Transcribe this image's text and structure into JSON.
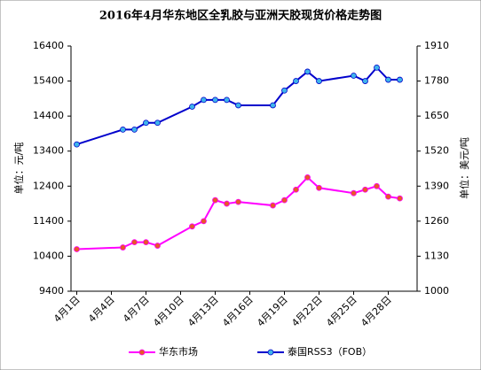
{
  "chart_data": {
    "type": "line",
    "title": "2016年4月华东地区全乳胶与亚洲天胶现货价格走势图",
    "y_label": "单位：元/吨",
    "y2_label": "单位：美元/吨",
    "xlim": [
      0.5,
      30.5
    ],
    "xticks": [
      {
        "value": 1,
        "label": "4月1日"
      },
      {
        "value": 4,
        "label": "4月4日"
      },
      {
        "value": 7,
        "label": "4月7日"
      },
      {
        "value": 10,
        "label": "4月10日"
      },
      {
        "value": 13,
        "label": "4月13日"
      },
      {
        "value": 16,
        "label": "4月16日"
      },
      {
        "value": 19,
        "label": "4月19日"
      },
      {
        "value": 22,
        "label": "4月22日"
      },
      {
        "value": 25,
        "label": "4月25日"
      },
      {
        "value": 28,
        "label": "4月28日"
      }
    ],
    "ylim": [
      9400,
      16400
    ],
    "yticks": [
      9400,
      10400,
      11400,
      12400,
      13400,
      14400,
      15400,
      16400
    ],
    "y2lim": [
      1000,
      1910
    ],
    "y2ticks": [
      1000,
      1130,
      1260,
      1390,
      1520,
      1650,
      1780,
      1910
    ],
    "legend": "bottom",
    "grid": false,
    "series": [
      {
        "name": "华东市场",
        "color": "#ff00ff",
        "marker_color": "#e8562a",
        "axis": "y",
        "x": [
          1,
          5,
          6,
          7,
          8,
          11,
          12,
          13,
          14,
          15,
          18,
          19,
          20,
          21,
          22,
          25,
          26,
          27,
          28,
          29
        ],
        "values": [
          10600,
          10650,
          10800,
          10800,
          10700,
          11250,
          11400,
          12000,
          11900,
          11950,
          11850,
          12000,
          12300,
          12650,
          12350,
          12200,
          12300,
          12400,
          12100,
          12050
        ]
      },
      {
        "name": "泰国RSS3（FOB）",
        "color": "#0000cc",
        "marker_color": "#3fb4ea",
        "axis": "y2",
        "x": [
          1,
          5,
          6,
          7,
          8,
          11,
          12,
          13,
          14,
          15,
          18,
          19,
          20,
          21,
          22,
          25,
          26,
          27,
          28,
          29
        ],
        "values": [
          1545,
          1600,
          1600,
          1625,
          1625,
          1685,
          1710,
          1710,
          1710,
          1690,
          1690,
          1745,
          1780,
          1815,
          1780,
          1800,
          1780,
          1830,
          1785,
          1785
        ]
      }
    ]
  }
}
